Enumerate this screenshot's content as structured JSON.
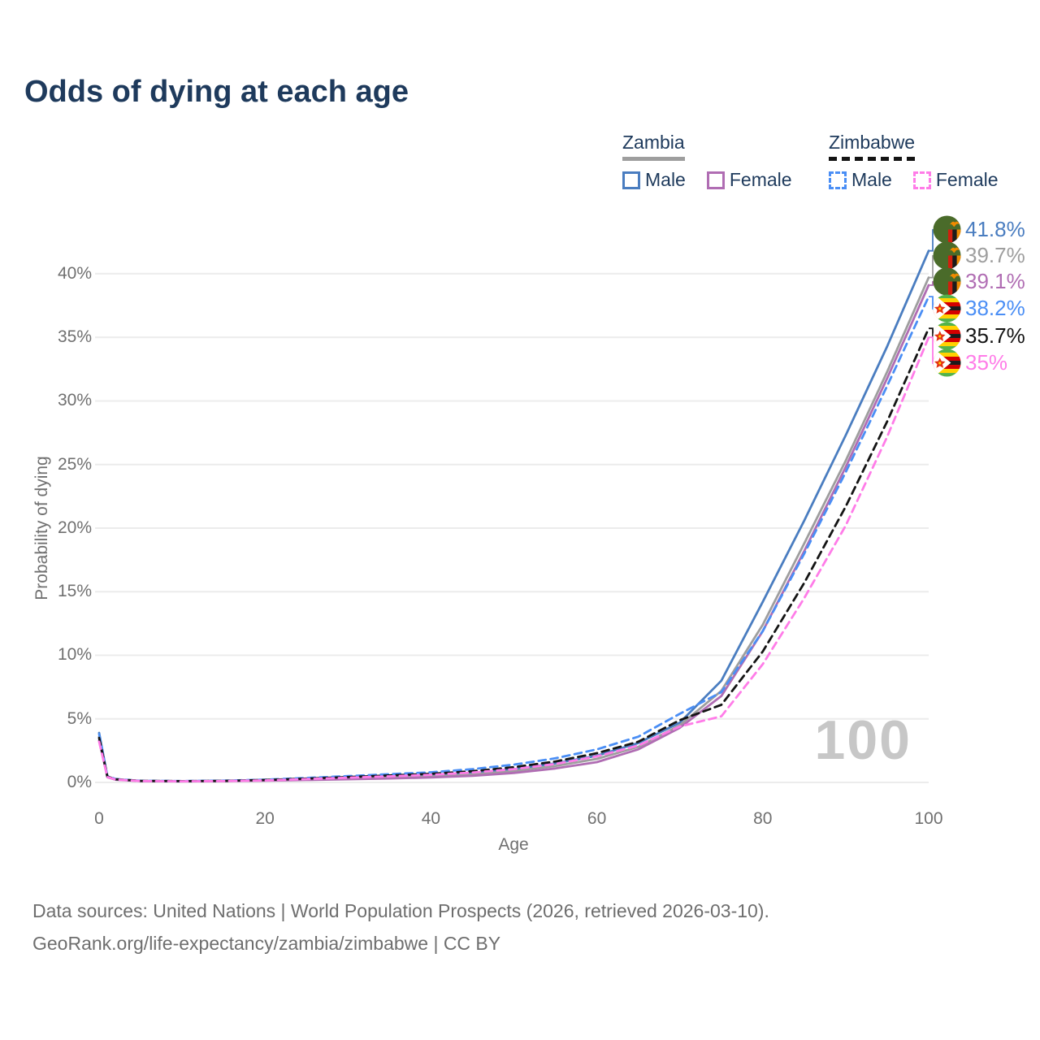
{
  "title": "Odds of dying at each age",
  "legend": {
    "groups": [
      {
        "country": "Zambia",
        "line_style": "solid",
        "underline_color": "#9e9e9e",
        "items": [
          {
            "label": "Male",
            "color": "#4a7dc0",
            "dashed": false
          },
          {
            "label": "Female",
            "color": "#b06db3",
            "dashed": false
          }
        ]
      },
      {
        "country": "Zimbabwe",
        "line_style": "dashed",
        "underline_color": "#141414",
        "items": [
          {
            "label": "Male",
            "color": "#4a8ef5",
            "dashed": true
          },
          {
            "label": "Female",
            "color": "#ff7ce8",
            "dashed": true
          }
        ]
      }
    ]
  },
  "watermark": "100",
  "footer": {
    "line1": "Data sources: United Nations | World Population Prospects (2026, retrieved 2026-03-10).",
    "line2": "GeoRank.org/life-expectancy/zambia/zimbabwe | CC BY"
  },
  "chart_data": {
    "type": "line",
    "title": "Odds of dying at each age",
    "xlabel": "Age",
    "ylabel": "Probability of dying",
    "xlim": [
      0,
      100
    ],
    "ylim": [
      0,
      43.5
    ],
    "x_ticks": [
      0,
      20,
      40,
      60,
      80,
      100
    ],
    "y_ticks": [
      0,
      5,
      10,
      15,
      20,
      25,
      30,
      35,
      40
    ],
    "y_tick_suffix": "%",
    "grid": "horizontal",
    "legend_position": "top-right",
    "ages": [
      0,
      1,
      2,
      5,
      10,
      15,
      20,
      25,
      30,
      35,
      40,
      45,
      50,
      55,
      60,
      65,
      70,
      75,
      80,
      85,
      90,
      95,
      100
    ],
    "series": [
      {
        "name": "Zambia Male",
        "country": "zambia",
        "sex": "male",
        "color": "#4a7dc0",
        "dashed": false,
        "end_label": "41.8%",
        "values": [
          3.9,
          0.45,
          0.25,
          0.12,
          0.1,
          0.13,
          0.2,
          0.28,
          0.36,
          0.45,
          0.55,
          0.75,
          1.05,
          1.5,
          2.1,
          3.1,
          4.7,
          8.0,
          14.2,
          20.6,
          27.3,
          34.3,
          41.8
        ]
      },
      {
        "name": "Zambia Both sexes",
        "country": "zambia",
        "sex": "both",
        "color": "#9e9e9e",
        "dashed": false,
        "end_label": "39.7%",
        "values": [
          3.6,
          0.42,
          0.23,
          0.11,
          0.09,
          0.11,
          0.17,
          0.23,
          0.3,
          0.38,
          0.47,
          0.63,
          0.9,
          1.3,
          1.85,
          2.8,
          4.5,
          7.2,
          12.4,
          18.8,
          25.3,
          32.3,
          39.7
        ]
      },
      {
        "name": "Zambia Female",
        "country": "zambia",
        "sex": "female",
        "color": "#b06db3",
        "dashed": false,
        "end_label": "39.1%",
        "values": [
          3.3,
          0.4,
          0.21,
          0.1,
          0.08,
          0.1,
          0.14,
          0.19,
          0.25,
          0.31,
          0.39,
          0.52,
          0.75,
          1.1,
          1.6,
          2.6,
          4.3,
          6.8,
          11.9,
          18.2,
          24.8,
          31.8,
          39.1
        ]
      },
      {
        "name": "Zimbabwe Male",
        "country": "zimbabwe",
        "sex": "male",
        "color": "#4a8ef5",
        "dashed": true,
        "end_label": "38.2%",
        "values": [
          3.8,
          0.5,
          0.27,
          0.13,
          0.11,
          0.14,
          0.22,
          0.35,
          0.5,
          0.65,
          0.8,
          1.05,
          1.4,
          1.9,
          2.6,
          3.6,
          5.4,
          7.1,
          11.9,
          18.0,
          24.4,
          31.2,
          38.2
        ]
      },
      {
        "name": "Zimbabwe Both sexes",
        "country": "zimbabwe",
        "sex": "both",
        "color": "#141414",
        "dashed": true,
        "end_label": "35.7%",
        "values": [
          3.5,
          0.46,
          0.25,
          0.12,
          0.1,
          0.12,
          0.19,
          0.3,
          0.42,
          0.55,
          0.68,
          0.88,
          1.2,
          1.65,
          2.3,
          3.2,
          4.9,
          6.1,
          10.3,
          15.7,
          21.7,
          28.4,
          35.7
        ]
      },
      {
        "name": "Zimbabwe Female",
        "country": "zimbabwe",
        "sex": "female",
        "color": "#ff7ce8",
        "dashed": true,
        "end_label": "35%",
        "values": [
          3.2,
          0.42,
          0.23,
          0.11,
          0.09,
          0.11,
          0.16,
          0.26,
          0.37,
          0.48,
          0.6,
          0.78,
          1.05,
          1.45,
          2.05,
          2.9,
          4.4,
          5.2,
          9.3,
          14.5,
          20.2,
          27.2,
          35.0
        ]
      }
    ]
  }
}
